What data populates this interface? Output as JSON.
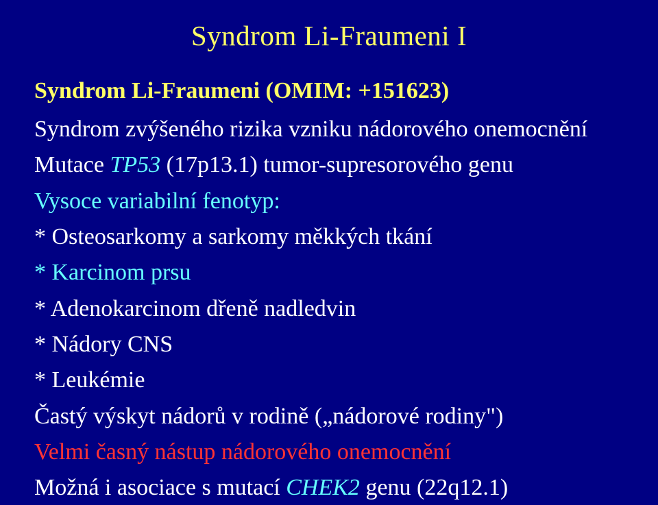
{
  "colors": {
    "background": "#000083",
    "yellow": "#ffff66",
    "white": "#ffffff",
    "cyan": "#66ffff",
    "red": "#ff3333"
  },
  "title": "Syndrom Li-Fraumeni I",
  "subtitle": "Syndrom Li-Fraumeni (OMIM: +151623)",
  "line1": "Syndrom zvýšeného rizika vzniku nádorového onemocnění",
  "line2_a": "Mutace ",
  "line2_b": "TP53",
  "line2_c": " (17p13.1) tumor-supresorového genu",
  "line3": "Vysoce variabilní fenotyp:",
  "b1": "*  Osteosarkomy a sarkomy měkkých tkání",
  "b2": "*  Karcinom prsu",
  "b3": "*  Adenokarcinom dřeně nadledvin",
  "b4": "*  Nádory CNS",
  "b5": "*  Leukémie",
  "line4_a": "Častý výskyt nádorů v rodině (",
  "line4_b": "„nádorové rodiny\"",
  "line4_c": ")",
  "line5": "Velmi časný nástup nádorového onemocnění",
  "line6_a": "Možná i asociace s mutací ",
  "line6_b": "CHEK2",
  "line6_c": " genu (22q12.1)"
}
